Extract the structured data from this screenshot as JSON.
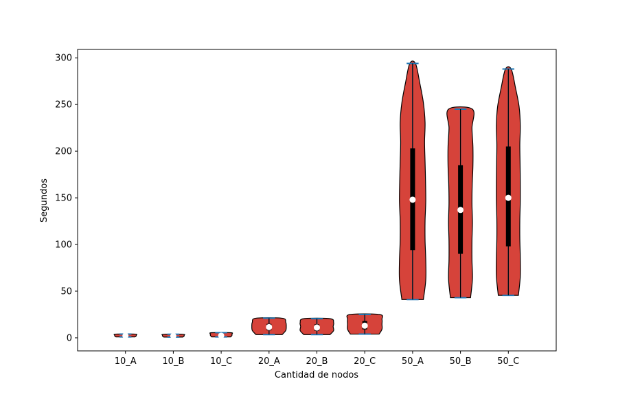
{
  "chart_data": {
    "type": "violin",
    "xlabel": "Cantidad de nodos",
    "ylabel": "Segundos",
    "categories": [
      "10_A",
      "10_B",
      "10_C",
      "20_A",
      "20_B",
      "20_C",
      "50_A",
      "50_B",
      "50_C"
    ],
    "ylim": [
      -14,
      309
    ],
    "yticks": [
      0,
      50,
      100,
      150,
      200,
      250,
      300
    ],
    "grid": false,
    "violin_color": "#d6433a",
    "extrema_color": "#1f77b4",
    "stats": [
      {
        "min": 1.0,
        "max": 4.0,
        "q1": 1.8,
        "median": 2.2,
        "q3": 2.8
      },
      {
        "min": 0.8,
        "max": 3.8,
        "q1": 1.6,
        "median": 2.0,
        "q3": 2.6
      },
      {
        "min": 1.0,
        "max": 5.5,
        "q1": 1.8,
        "median": 2.3,
        "q3": 3.0
      },
      {
        "min": 3.5,
        "max": 21.0,
        "q1": 8.0,
        "median": 11.5,
        "q3": 15.0
      },
      {
        "min": 3.5,
        "max": 20.5,
        "q1": 7.5,
        "median": 11.0,
        "q3": 14.5
      },
      {
        "min": 4.0,
        "max": 25.0,
        "q1": 9.0,
        "median": 13.0,
        "q3": 18.0
      },
      {
        "min": 41.0,
        "max": 294.0,
        "q1": 94.0,
        "median": 148.0,
        "q3": 203.0
      },
      {
        "min": 43.0,
        "max": 245.0,
        "q1": 90.0,
        "median": 137.0,
        "q3": 185.0
      },
      {
        "min": 45.5,
        "max": 288.0,
        "q1": 98.0,
        "median": 150.0,
        "q3": 205.0
      }
    ],
    "density_widths": [
      [
        0.4,
        0.45,
        0.45,
        0.4
      ],
      [
        0.4,
        0.45,
        0.45,
        0.4
      ],
      [
        0.4,
        0.45,
        0.45,
        0.4
      ],
      [
        0.55,
        0.7,
        0.72,
        0.7,
        0.55
      ],
      [
        0.55,
        0.7,
        0.68,
        0.7,
        0.55
      ],
      [
        0.6,
        0.72,
        0.72,
        0.72,
        0.62
      ],
      [
        0.45,
        0.55,
        0.55,
        0.52,
        0.52,
        0.55,
        0.54,
        0.52,
        0.5,
        0.52,
        0.45,
        0.3,
        0.12
      ],
      [
        0.42,
        0.5,
        0.48,
        0.48,
        0.5,
        0.48,
        0.49,
        0.52,
        0.52,
        0.48,
        0.5
      ],
      [
        0.42,
        0.5,
        0.5,
        0.48,
        0.48,
        0.5,
        0.5,
        0.49,
        0.48,
        0.5,
        0.45,
        0.3,
        0.12
      ]
    ]
  }
}
